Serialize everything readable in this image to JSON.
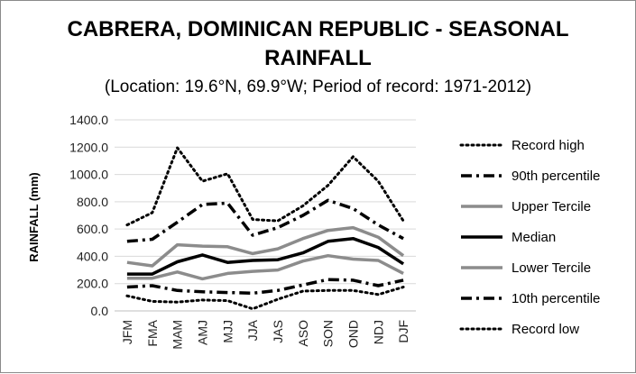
{
  "chart_data": {
    "type": "line",
    "title_line1": "CABRERA, DOMINICAN REPUBLIC - SEASONAL",
    "title_line2": "RAINFALL",
    "subtitle": "(Location: 19.6°N, 69.9°W; Period of record: 1971-2012)",
    "xlabel": "",
    "ylabel": "RAINFALL (mm)",
    "ylim": [
      0,
      1400
    ],
    "yticks": [
      "1400.0",
      "1200.0",
      "1000.0",
      "800.0",
      "600.0",
      "400.0",
      "200.0",
      "0.0"
    ],
    "ytick_values": [
      1400,
      1200,
      1000,
      800,
      600,
      400,
      200,
      0
    ],
    "categories": [
      "JFM",
      "FMA",
      "MAM",
      "AMJ",
      "MJJ",
      "JJA",
      "JAS",
      "ASO",
      "SON",
      "OND",
      "NDJ",
      "DJF"
    ],
    "grid": true,
    "legend_position": "right",
    "series": [
      {
        "name": "Record high",
        "style": "dotted",
        "color": "#000000",
        "values": [
          630,
          720,
          1195,
          950,
          1005,
          670,
          660,
          770,
          920,
          1130,
          950,
          660
        ]
      },
      {
        "name": "90th percentile",
        "style": "dashdot",
        "color": "#000000",
        "values": [
          510,
          525,
          650,
          780,
          790,
          555,
          610,
          700,
          810,
          750,
          630,
          530
        ]
      },
      {
        "name": "Upper Tercile",
        "style": "solid",
        "color": "#8c8c8c",
        "values": [
          355,
          330,
          485,
          475,
          470,
          420,
          455,
          530,
          590,
          610,
          540,
          405
        ]
      },
      {
        "name": "Median",
        "style": "solid",
        "color": "#000000",
        "values": [
          270,
          270,
          360,
          410,
          355,
          370,
          375,
          425,
          510,
          530,
          465,
          345
        ]
      },
      {
        "name": "Lower Tercile",
        "style": "solid",
        "color": "#8c8c8c",
        "values": [
          240,
          240,
          285,
          235,
          275,
          290,
          300,
          365,
          405,
          380,
          370,
          275
        ]
      },
      {
        "name": "10th percentile",
        "style": "dashdot",
        "color": "#000000",
        "values": [
          175,
          185,
          150,
          140,
          135,
          130,
          150,
          190,
          230,
          225,
          185,
          225
        ]
      },
      {
        "name": "Record low",
        "style": "dotted",
        "color": "#000000",
        "values": [
          110,
          70,
          65,
          80,
          75,
          15,
          85,
          145,
          150,
          150,
          120,
          175
        ]
      }
    ]
  }
}
